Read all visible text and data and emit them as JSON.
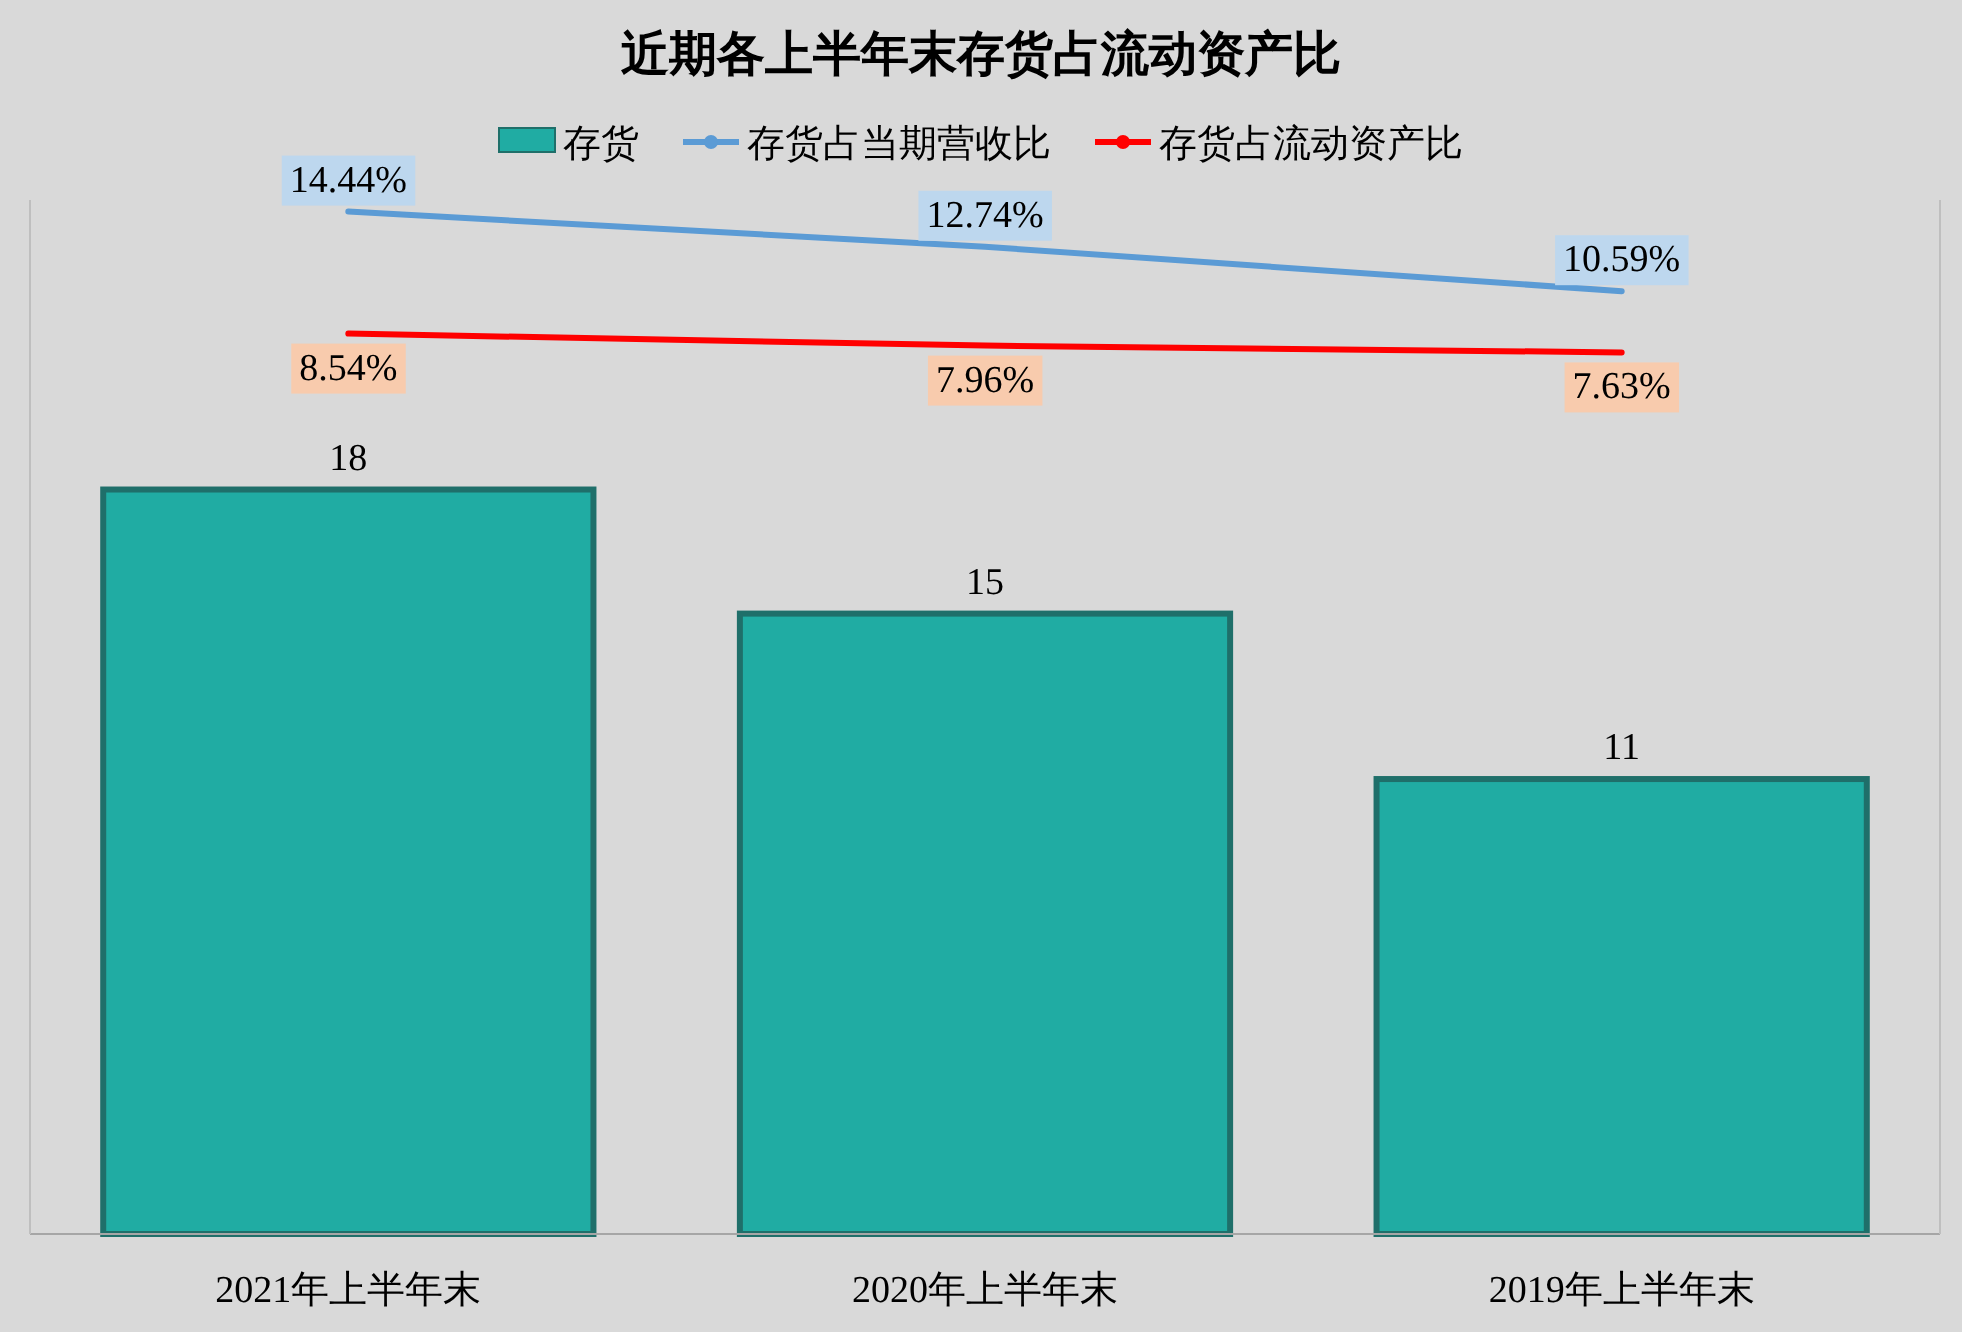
{
  "chart_data": {
    "type": "bar",
    "title": "近期各上半年末存货占流动资产比",
    "categories": [
      "2021年上半年末",
      "2020年上半年末",
      "2019年上半年末"
    ],
    "series": [
      {
        "name": "存货",
        "color": "#20aca3",
        "values": [
          18,
          15,
          11
        ]
      },
      {
        "name": "存货占当期营收比",
        "type": "line",
        "axis": "y2",
        "color": "#5b9bd5",
        "values": [
          14.44,
          12.74,
          10.59
        ],
        "value_labels": [
          "14.44%",
          "12.74%",
          "10.59%"
        ]
      },
      {
        "name": "存货占流动资产比",
        "type": "line",
        "axis": "y2",
        "color": "#ff0000",
        "values": [
          8.54,
          7.96,
          7.63
        ],
        "value_labels": [
          "8.54%",
          "7.96%",
          "7.63%"
        ]
      }
    ],
    "ylim": [
      0,
      25
    ],
    "y2lim": [
      -35,
      15
    ],
    "data_labels": true,
    "legend": "top",
    "tick_labels": "x"
  }
}
